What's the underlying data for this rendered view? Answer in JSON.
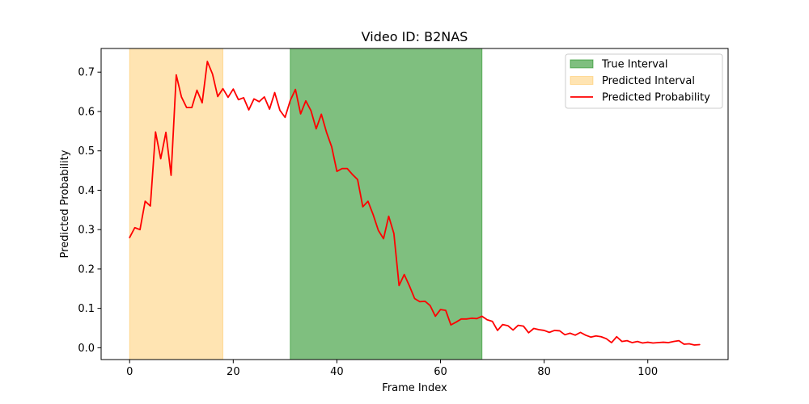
{
  "chart_data": {
    "type": "line",
    "title": "Video ID: B2NAS",
    "xlabel": "Frame Index",
    "ylabel": "Predicted Probability",
    "xlim": [
      -5.5,
      115.5
    ],
    "ylim": [
      -0.03,
      0.76
    ],
    "xticks": [
      0,
      20,
      40,
      60,
      80,
      100
    ],
    "yticks": [
      0.0,
      0.1,
      0.2,
      0.3,
      0.4,
      0.5,
      0.6,
      0.7
    ],
    "grid": false,
    "legend_position": "top-right",
    "legend": [
      {
        "label": "True Interval",
        "kind": "patch",
        "color": "#008000",
        "opacity": 0.5
      },
      {
        "label": "Predicted Interval",
        "kind": "patch",
        "color": "#FFA500",
        "opacity": 0.3
      },
      {
        "label": "Predicted Probability",
        "kind": "line",
        "color": "#FF0000"
      }
    ],
    "intervals": [
      {
        "name": "Predicted Interval",
        "start": 0,
        "end": 18,
        "color": "#FFA500",
        "opacity": 0.3
      },
      {
        "name": "True Interval",
        "start": 31,
        "end": 68,
        "color": "#008000",
        "opacity": 0.5
      }
    ],
    "series": [
      {
        "name": "Predicted Probability",
        "color": "#FF0000",
        "x": [
          0,
          1,
          2,
          3,
          4,
          5,
          6,
          7,
          8,
          9,
          10,
          11,
          12,
          13,
          14,
          15,
          16,
          17,
          18,
          19,
          20,
          21,
          22,
          23,
          24,
          25,
          26,
          27,
          28,
          29,
          30,
          31,
          32,
          33,
          34,
          35,
          36,
          37,
          38,
          39,
          40,
          41,
          42,
          43,
          44,
          45,
          46,
          47,
          48,
          49,
          50,
          51,
          52,
          53,
          54,
          55,
          56,
          57,
          58,
          59,
          60,
          61,
          62,
          63,
          64,
          65,
          66,
          67,
          68,
          69,
          70,
          71,
          72,
          73,
          74,
          75,
          76,
          77,
          78,
          79,
          80,
          81,
          82,
          83,
          84,
          85,
          86,
          87,
          88,
          89,
          90,
          91,
          92,
          93,
          94,
          95,
          96,
          97,
          98,
          99,
          100,
          101,
          102,
          103,
          104,
          105,
          106,
          107,
          108,
          109,
          110
        ],
        "y": [
          0.28,
          0.305,
          0.3,
          0.372,
          0.36,
          0.548,
          0.48,
          0.547,
          0.438,
          0.693,
          0.637,
          0.61,
          0.61,
          0.654,
          0.622,
          0.727,
          0.695,
          0.638,
          0.658,
          0.636,
          0.657,
          0.63,
          0.635,
          0.604,
          0.632,
          0.625,
          0.637,
          0.606,
          0.648,
          0.603,
          0.585,
          0.628,
          0.656,
          0.594,
          0.627,
          0.602,
          0.556,
          0.593,
          0.547,
          0.51,
          0.448,
          0.455,
          0.455,
          0.44,
          0.427,
          0.358,
          0.372,
          0.338,
          0.298,
          0.277,
          0.334,
          0.29,
          0.158,
          0.186,
          0.157,
          0.125,
          0.117,
          0.118,
          0.107,
          0.08,
          0.097,
          0.095,
          0.058,
          0.065,
          0.073,
          0.073,
          0.075,
          0.074,
          0.08,
          0.071,
          0.067,
          0.044,
          0.059,
          0.056,
          0.045,
          0.057,
          0.055,
          0.038,
          0.049,
          0.046,
          0.044,
          0.039,
          0.044,
          0.043,
          0.033,
          0.037,
          0.032,
          0.039,
          0.032,
          0.027,
          0.03,
          0.028,
          0.023,
          0.013,
          0.028,
          0.016,
          0.018,
          0.013,
          0.016,
          0.012,
          0.014,
          0.012,
          0.013,
          0.014,
          0.013,
          0.016,
          0.018,
          0.009,
          0.01,
          0.007,
          0.008
        ]
      }
    ]
  }
}
